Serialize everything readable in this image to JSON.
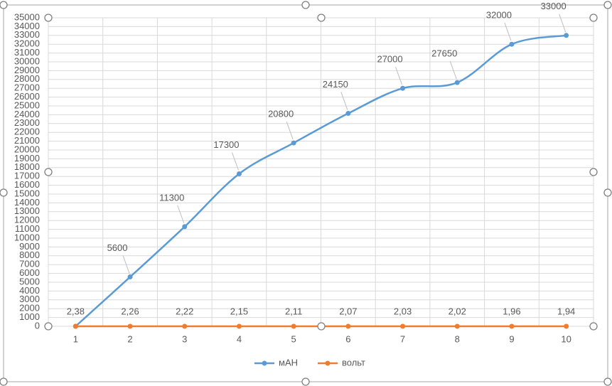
{
  "chart_data": {
    "type": "line",
    "categories": [
      "1",
      "2",
      "3",
      "4",
      "5",
      "6",
      "7",
      "8",
      "9",
      "10"
    ],
    "series": [
      {
        "name": "мАН",
        "color": "#5b9bd5",
        "values": [
          0,
          5600,
          11300,
          17300,
          20800,
          24150,
          27000,
          27650,
          32000,
          33000
        ],
        "value_labels": [
          null,
          "5600",
          "11300",
          "17300",
          "20800",
          "24150",
          "27000",
          "27650",
          "32000",
          "33000"
        ]
      },
      {
        "name": "вольт",
        "color": "#ed7d31",
        "values": [
          2.38,
          2.26,
          2.22,
          2.15,
          2.11,
          2.07,
          2.03,
          2.02,
          1.96,
          1.94
        ],
        "value_labels": [
          "2,38",
          "2,26",
          "2,22",
          "2,15",
          "2,11",
          "2,07",
          "2,03",
          "2,02",
          "1,96",
          "1,94"
        ]
      }
    ],
    "ylim": [
      0,
      35000
    ],
    "yticks": [
      0,
      1000,
      2000,
      3000,
      4000,
      5000,
      6000,
      7000,
      8000,
      9000,
      10000,
      11000,
      12000,
      13000,
      14000,
      15000,
      16000,
      17000,
      18000,
      19000,
      20000,
      21000,
      22000,
      23000,
      24000,
      25000,
      26000,
      27000,
      28000,
      29000,
      30000,
      31000,
      32000,
      33000,
      34000,
      35000
    ],
    "grid": true,
    "smooth": true,
    "legend": "bottom"
  }
}
